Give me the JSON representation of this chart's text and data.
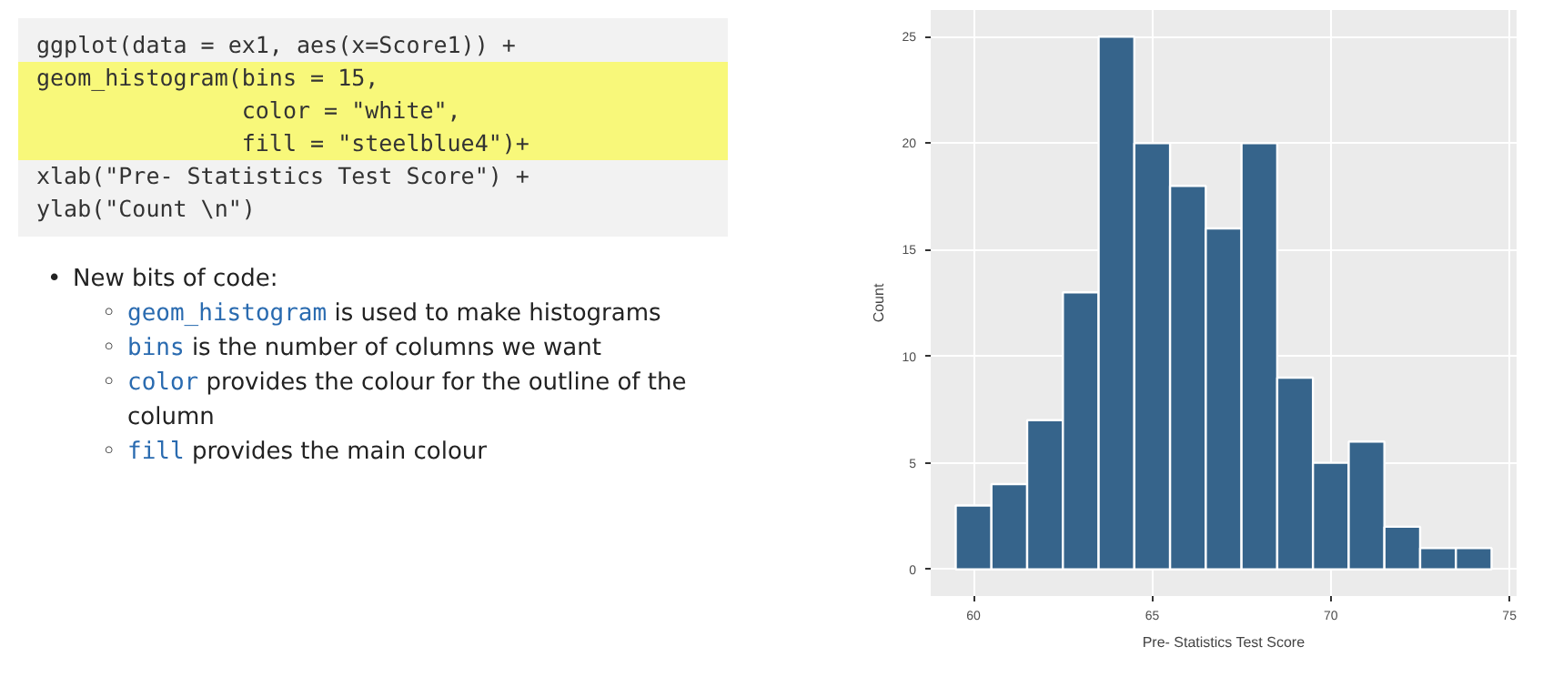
{
  "chart_data": {
    "type": "histogram",
    "xlabel": "Pre- Statistics Test Score",
    "ylabel": "Count",
    "bins": [
      59.5,
      60.5,
      61.5,
      62.5,
      63.5,
      64.5,
      65.5,
      66.5,
      67.5,
      68.5,
      69.5,
      70.5,
      71.5,
      72.5,
      73.5,
      74.5
    ],
    "values": [
      3,
      4,
      7,
      13,
      25,
      20,
      18,
      16,
      20,
      9,
      5,
      6,
      2,
      1,
      1
    ],
    "color": "#36648b",
    "xlim": [
      58.8,
      75.2
    ],
    "xticks": [
      60,
      65,
      70,
      75
    ],
    "ylim": [
      -1.25,
      26.25
    ],
    "yticks": [
      0,
      5,
      10,
      15,
      20,
      25
    ],
    "grid": true,
    "annotations": [
      "ggplot(data = ex1, aes(x=Score1)) +",
      "geom_histogram(bins = 15,",
      "               color = \"white\",",
      "               fill = \"steelblue4\")+",
      "xlab(\"Pre- Statistics Test Score\") +",
      "ylab(\"Count \\n\")",
      "• New bits of code:",
      "◦ geom_histogram is used to make histograms",
      "◦ bins is the number of columns we want",
      "◦ color provides the colour for the outline of the column",
      "◦ fill provides the main colour"
    ]
  }
}
